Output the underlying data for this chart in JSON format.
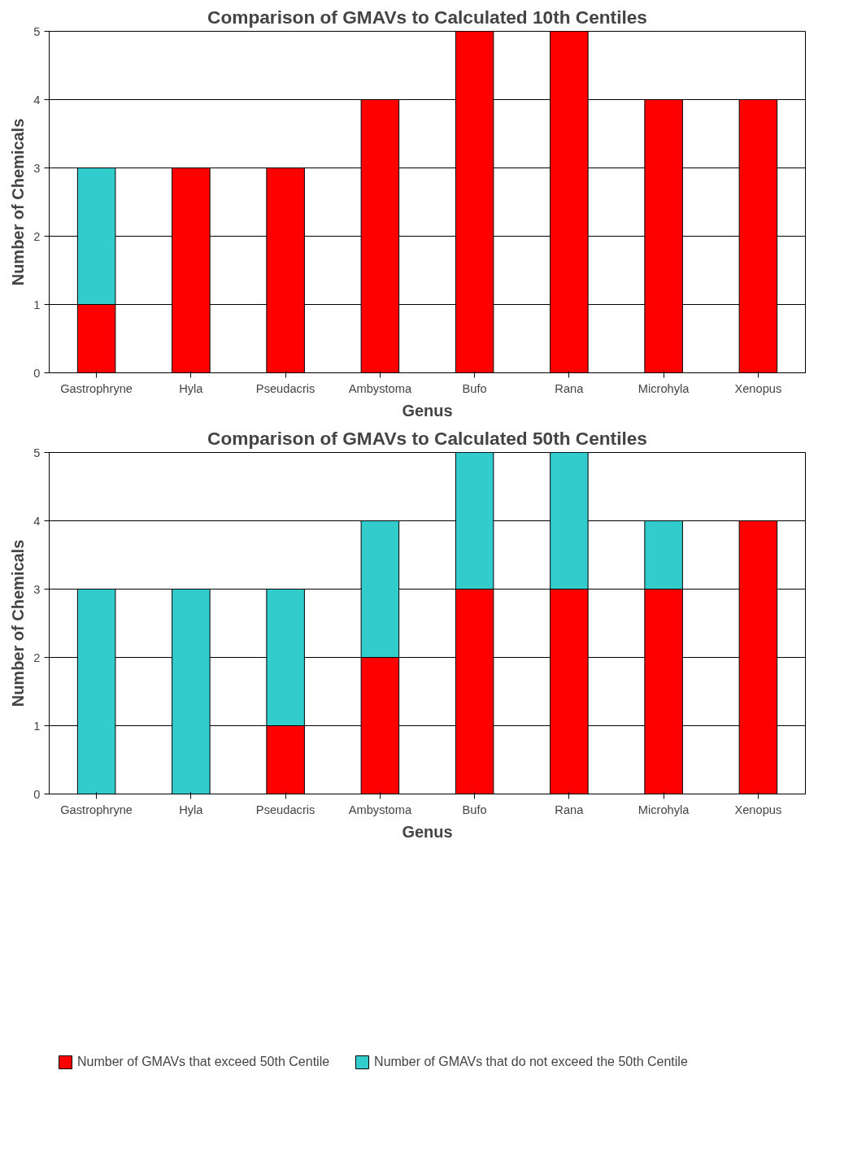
{
  "chart_data": [
    {
      "type": "bar",
      "title": "Comparison of GMAVs to Calculated 10th Centiles",
      "xlabel": "Genus",
      "ylabel": "Number of Chemicals",
      "categories": [
        "Gastrophryne",
        "Hyla",
        "Pseudacris",
        "Ambystoma",
        "Bufo",
        "Rana",
        "Microhyla",
        "Xenopus"
      ],
      "stacked": true,
      "ylim": [
        0,
        5
      ],
      "yticks": [
        0,
        1,
        2,
        3,
        4,
        5
      ],
      "grid": "y",
      "legend": false,
      "series": [
        {
          "color": "#ff0000",
          "values": [
            1,
            3,
            3,
            4,
            5,
            5,
            4,
            4
          ]
        },
        {
          "color": "#33cccc",
          "values": [
            2,
            0,
            0,
            0,
            0,
            0,
            0,
            0
          ]
        }
      ]
    },
    {
      "type": "bar",
      "title": "Comparison of GMAVs to Calculated 50th Centiles",
      "xlabel": "Genus",
      "ylabel": "Number of Chemicals",
      "categories": [
        "Gastrophryne",
        "Hyla",
        "Pseudacris",
        "Ambystoma",
        "Bufo",
        "Rana",
        "Microhyla",
        "Xenopus"
      ],
      "stacked": true,
      "ylim": [
        0,
        5
      ],
      "yticks": [
        0,
        1,
        2,
        3,
        4,
        5
      ],
      "grid": "y",
      "legend": "bottom",
      "series": [
        {
          "name": "Number of GMAVs that exceed 50th Centile",
          "color": "#ff0000",
          "values": [
            0,
            0,
            1,
            2,
            3,
            3,
            3,
            4
          ]
        },
        {
          "name": "Number of GMAVs that do not exceed the 50th Centile",
          "color": "#33cccc",
          "values": [
            3,
            3,
            2,
            2,
            2,
            2,
            1,
            0
          ]
        }
      ]
    }
  ]
}
